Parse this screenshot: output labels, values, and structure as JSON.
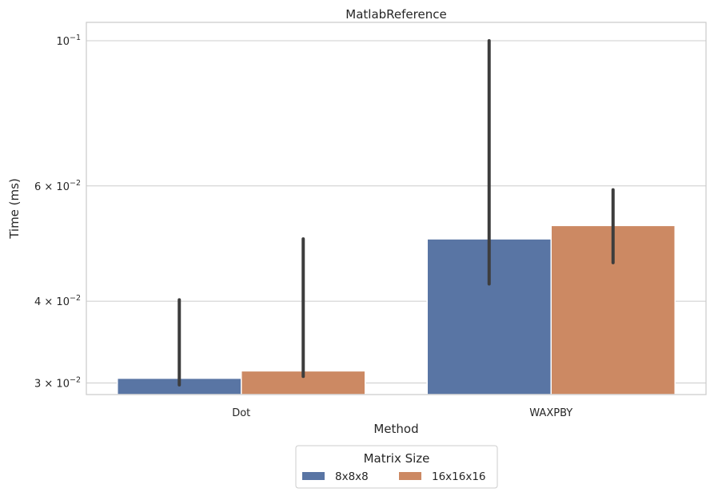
{
  "chart_data": {
    "type": "bar",
    "title": "MatlabReference",
    "xlabel": "Method",
    "ylabel": "Time (ms)",
    "categories": [
      "Dot",
      "WAXPBY"
    ],
    "yscale": "log",
    "ylim": [
      0.0288,
      0.1
    ],
    "yticks": [
      {
        "value": 0.03,
        "mantissa": "3",
        "exponent": "−2"
      },
      {
        "value": 0.04,
        "mantissa": "4",
        "exponent": "−2"
      },
      {
        "value": 0.06,
        "mantissa": "6",
        "exponent": "−2"
      },
      {
        "value": 0.1,
        "mantissa": "",
        "exponent": "−1"
      }
    ],
    "grid": "horizontal",
    "legend": {
      "title": "Matrix Size",
      "position": "bottom-center"
    },
    "series": [
      {
        "name": "8x8x8",
        "color": "#5975a4",
        "values": [
          0.0305,
          0.0498
        ],
        "error_low": [
          0.0298,
          0.0425
        ],
        "error_high": [
          0.0402,
          0.1
        ]
      },
      {
        "name": "16x16x16",
        "color": "#cc8963",
        "values": [
          0.0313,
          0.0522
        ],
        "error_low": [
          0.0307,
          0.0458
        ],
        "error_high": [
          0.0498,
          0.0592
        ]
      }
    ]
  }
}
